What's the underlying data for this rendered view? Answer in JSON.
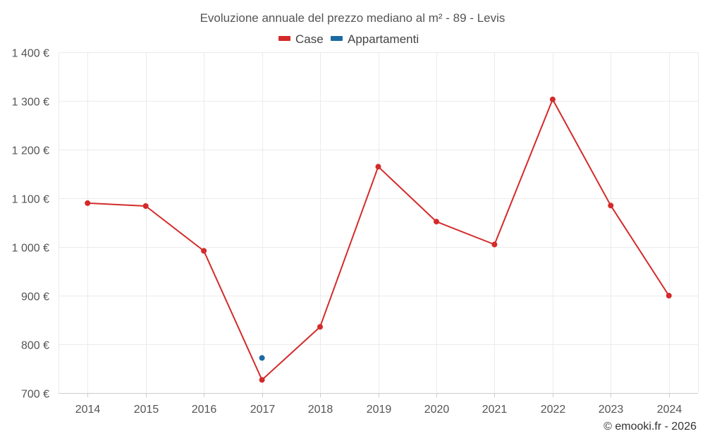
{
  "chart_data": {
    "type": "line",
    "title": "Evoluzione annuale del prezzo mediano al m² - 89 - Levis",
    "categories": [
      "2014",
      "2015",
      "2016",
      "2017",
      "2018",
      "2019",
      "2020",
      "2021",
      "2022",
      "2023",
      "2024"
    ],
    "series": [
      {
        "name": "Case",
        "color": "#d42a2a",
        "values": [
          1090,
          1084,
          992,
          727,
          836,
          1165,
          1052,
          1005,
          1303,
          1085,
          900
        ]
      },
      {
        "name": "Appartamenti",
        "color": "#1c6aa3",
        "values": [
          null,
          null,
          null,
          772,
          null,
          null,
          null,
          null,
          null,
          null,
          null
        ]
      }
    ],
    "ylim": [
      700,
      1400
    ],
    "yticks": [
      700,
      800,
      900,
      1000,
      1100,
      1200,
      1300,
      1400
    ],
    "ytick_labels": [
      "700 €",
      "800 €",
      "900 €",
      "1 000 €",
      "1 100 €",
      "1 200 €",
      "1 300 €",
      "1 400 €"
    ],
    "xlabel": "",
    "ylabel": "",
    "grid": true,
    "legend_position": "top-center"
  },
  "credit": "© emooki.fr - 2026"
}
